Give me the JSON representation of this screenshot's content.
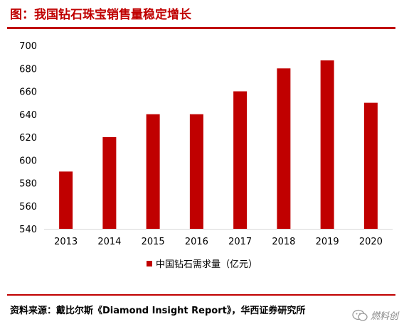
{
  "header": {
    "title": "图：我国钻石珠宝销售量稳定增长"
  },
  "footer": {
    "source": "资料来源：戴比尔斯《Diamond Insight Report》，华西证券研究所",
    "watermark": "燃料创"
  },
  "colors": {
    "accent": "#c00000",
    "bar": "#c00000",
    "axis": "#d9d9d9"
  },
  "chart_data": {
    "type": "bar",
    "categories": [
      "2013",
      "2014",
      "2015",
      "2016",
      "2017",
      "2018",
      "2019",
      "2020"
    ],
    "series": [
      {
        "name": "中国钻石需求量（亿元）",
        "values": [
          590,
          620,
          640,
          640,
          660,
          680,
          687,
          650
        ]
      }
    ],
    "ylim": [
      540,
      700
    ],
    "yticks": [
      540,
      560,
      580,
      600,
      620,
      640,
      660,
      680,
      700
    ],
    "grid": false,
    "legend": "bottom"
  }
}
